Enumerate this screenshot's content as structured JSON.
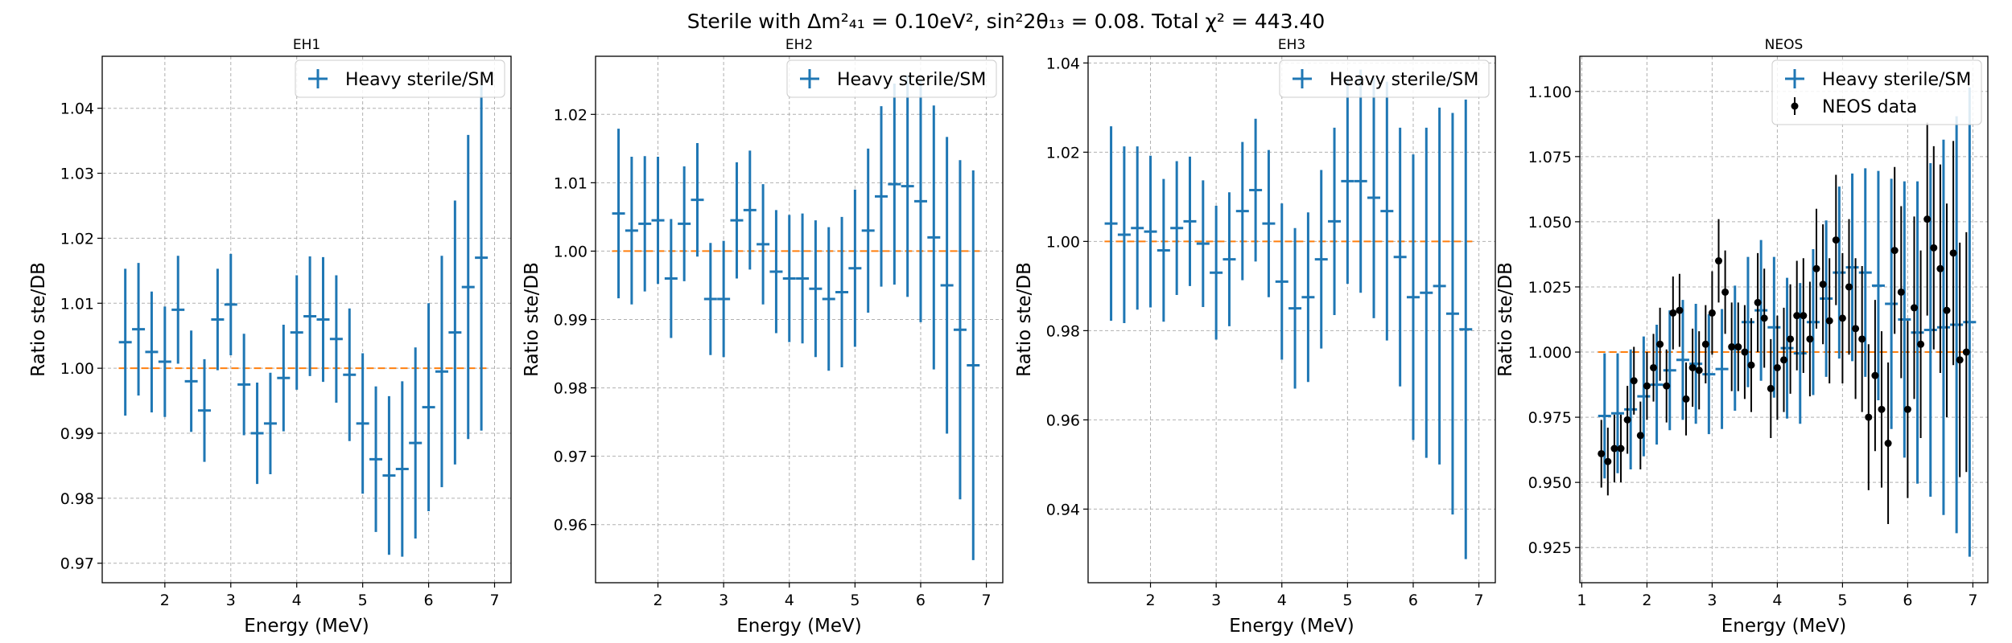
{
  "figure": {
    "suptitle": "Sterile with Δm²₄₁ = 0.10eV², sin²2θ₁₃ = 0.08. Total χ² = 443.40"
  },
  "colors": {
    "model": "#1f77b4",
    "data": "#000000",
    "reference": "#ff7f0e",
    "grid": "#b0b0b0"
  },
  "chart_data": [
    {
      "type": "errorbar",
      "title": "EH1",
      "xlabel": "Energy (MeV)",
      "ylabel": "Ratio ste/DB",
      "xlim": [
        1.05,
        7.25
      ],
      "ylim": [
        0.967,
        1.048
      ],
      "xticks": [
        2,
        3,
        4,
        5,
        6,
        7
      ],
      "yticks": [
        0.97,
        0.98,
        0.99,
        1.0,
        1.01,
        1.02,
        1.03,
        1.04
      ],
      "ytick_decimals": 2,
      "grid": true,
      "legend_position": "top-right",
      "reference_line": {
        "y": 1.0,
        "x": [
          1.3,
          6.9
        ]
      },
      "series": [
        {
          "name": "Heavy sterile/SM",
          "kind": "model",
          "x": [
            1.4,
            1.6,
            1.8,
            2.0,
            2.2,
            2.4,
            2.6,
            2.8,
            3.0,
            3.2,
            3.4,
            3.6,
            3.8,
            4.0,
            4.2,
            4.4,
            4.6,
            4.8,
            5.0,
            5.2,
            5.4,
            5.6,
            5.8,
            6.0,
            6.2,
            6.4,
            6.6,
            6.8
          ],
          "y": [
            1.004,
            1.006,
            1.0025,
            1.001,
            1.009,
            0.998,
            0.9935,
            1.0075,
            1.0098,
            0.9975,
            0.99,
            0.9915,
            0.9985,
            1.0055,
            1.008,
            1.0075,
            1.0045,
            0.999,
            0.9915,
            0.986,
            0.9835,
            0.9845,
            0.9885,
            0.994,
            0.9995,
            1.0055,
            1.0125,
            1.017
          ],
          "yerr": [
            0.0113,
            0.0102,
            0.0093,
            0.0085,
            0.0083,
            0.0078,
            0.0079,
            0.0078,
            0.0078,
            0.0078,
            0.0078,
            0.0078,
            0.0082,
            0.0088,
            0.0092,
            0.0096,
            0.0098,
            0.0102,
            0.0108,
            0.0112,
            0.0122,
            0.0135,
            0.0147,
            0.016,
            0.0178,
            0.0203,
            0.0234,
            0.0266
          ]
        }
      ]
    },
    {
      "type": "errorbar",
      "title": "EH2",
      "xlabel": "Energy (MeV)",
      "ylabel": "Ratio ste/DB",
      "xlim": [
        1.05,
        7.25
      ],
      "ylim": [
        0.9515,
        1.0285
      ],
      "xticks": [
        2,
        3,
        4,
        5,
        6,
        7
      ],
      "yticks": [
        0.96,
        0.97,
        0.98,
        0.99,
        1.0,
        1.01,
        1.02
      ],
      "ytick_decimals": 2,
      "grid": true,
      "legend_position": "top-right",
      "reference_line": {
        "y": 1.0,
        "x": [
          1.3,
          6.9
        ]
      },
      "series": [
        {
          "name": "Heavy sterile/SM",
          "kind": "model",
          "x": [
            1.4,
            1.6,
            1.8,
            2.0,
            2.2,
            2.4,
            2.6,
            2.8,
            3.0,
            3.2,
            3.4,
            3.6,
            3.8,
            4.0,
            4.2,
            4.4,
            4.6,
            4.8,
            5.0,
            5.2,
            5.4,
            5.6,
            5.8,
            6.0,
            6.2,
            6.4,
            6.6,
            6.8
          ],
          "y": [
            1.0055,
            1.003,
            1.004,
            1.0045,
            0.996,
            1.004,
            1.0075,
            0.993,
            0.993,
            1.0045,
            1.006,
            1.001,
            0.997,
            0.996,
            0.996,
            0.9945,
            0.993,
            0.994,
            0.9975,
            1.003,
            1.008,
            1.0098,
            1.0095,
            1.0073,
            1.002,
            0.995,
            0.9885,
            0.9833
          ],
          "yerr": [
            0.0124,
            0.0108,
            0.0099,
            0.0093,
            0.0087,
            0.0084,
            0.0083,
            0.0082,
            0.0085,
            0.0085,
            0.0087,
            0.0088,
            0.009,
            0.0093,
            0.0095,
            0.01,
            0.0105,
            0.011,
            0.0115,
            0.012,
            0.0132,
            0.0147,
            0.0162,
            0.0177,
            0.0193,
            0.0217,
            0.0248,
            0.0285
          ]
        }
      ]
    },
    {
      "type": "errorbar",
      "title": "EH3",
      "xlabel": "Energy (MeV)",
      "ylabel": "Ratio ste/DB",
      "xlim": [
        1.05,
        7.25
      ],
      "ylim": [
        0.9235,
        1.0415
      ],
      "xticks": [
        2,
        3,
        4,
        5,
        6,
        7
      ],
      "yticks": [
        0.94,
        0.96,
        0.98,
        1.0,
        1.02,
        1.04
      ],
      "ytick_decimals": 2,
      "grid": true,
      "legend_position": "top-right",
      "reference_line": {
        "y": 1.0,
        "x": [
          1.3,
          6.9
        ]
      },
      "series": [
        {
          "name": "Heavy sterile/SM",
          "kind": "model",
          "x": [
            1.4,
            1.6,
            1.8,
            2.0,
            2.2,
            2.4,
            2.6,
            2.8,
            3.0,
            3.2,
            3.4,
            3.6,
            3.8,
            4.0,
            4.2,
            4.4,
            4.6,
            4.8,
            5.0,
            5.2,
            5.4,
            5.6,
            5.8,
            6.0,
            6.2,
            6.4,
            6.6,
            6.8
          ],
          "y": [
            1.004,
            1.0015,
            1.003,
            1.0022,
            0.998,
            1.003,
            1.0045,
            0.9995,
            0.993,
            0.996,
            1.0068,
            1.0115,
            1.004,
            0.991,
            0.985,
            0.9875,
            0.996,
            1.0045,
            1.0135,
            1.0135,
            1.0098,
            1.0068,
            0.9965,
            0.9875,
            0.9885,
            0.99,
            0.9838,
            0.9803
          ],
          "yerr": [
            0.0218,
            0.0198,
            0.0183,
            0.017,
            0.016,
            0.015,
            0.0145,
            0.0142,
            0.015,
            0.015,
            0.0155,
            0.016,
            0.0165,
            0.0175,
            0.018,
            0.019,
            0.02,
            0.021,
            0.023,
            0.025,
            0.027,
            0.029,
            0.029,
            0.032,
            0.037,
            0.04,
            0.045,
            0.0515
          ]
        }
      ]
    },
    {
      "type": "errorbar",
      "title": "NEOS",
      "xlabel": "Energy (MeV)",
      "ylabel": "Ratio ste/DB",
      "xlim": [
        0.97,
        7.23
      ],
      "ylim": [
        0.9115,
        1.1135
      ],
      "xticks": [
        1,
        2,
        3,
        4,
        5,
        6,
        7
      ],
      "yticks": [
        0.925,
        0.95,
        0.975,
        1.0,
        1.025,
        1.05,
        1.075,
        1.1
      ],
      "ytick_decimals": 3,
      "grid": true,
      "legend_position": "top-right",
      "reference_line": {
        "y": 1.0,
        "x": [
          1.25,
          6.95
        ]
      },
      "series": [
        {
          "name": "Heavy sterile/SM",
          "kind": "model",
          "x": [
            1.35,
            1.55,
            1.75,
            1.95,
            2.15,
            2.35,
            2.55,
            2.75,
            2.95,
            3.15,
            3.35,
            3.55,
            3.75,
            3.95,
            4.15,
            4.35,
            4.55,
            4.75,
            4.95,
            5.15,
            5.35,
            5.55,
            5.75,
            5.95,
            6.15,
            6.35,
            6.55,
            6.75,
            6.95
          ],
          "y": [
            0.9755,
            0.9765,
            0.978,
            0.983,
            0.9875,
            0.993,
            0.997,
            0.9955,
            0.9915,
            0.9935,
            1.0015,
            1.0115,
            1.016,
            1.0095,
            1.0015,
            0.9995,
            1.0115,
            1.0205,
            1.0305,
            1.0325,
            1.0305,
            1.0255,
            1.0185,
            1.0125,
            1.0075,
            1.0085,
            1.0095,
            1.0105,
            1.0115
          ],
          "yerr": [
            0.024,
            0.023,
            0.023,
            0.023,
            0.023,
            0.023,
            0.023,
            0.023,
            0.023,
            0.023,
            0.024,
            0.025,
            0.027,
            0.027,
            0.027,
            0.027,
            0.028,
            0.03,
            0.033,
            0.036,
            0.04,
            0.044,
            0.048,
            0.053,
            0.058,
            0.064,
            0.072,
            0.08,
            0.09
          ]
        },
        {
          "name": "NEOS data",
          "kind": "data",
          "x": [
            1.3,
            1.4,
            1.5,
            1.6,
            1.7,
            1.8,
            1.9,
            2.0,
            2.1,
            2.2,
            2.3,
            2.4,
            2.5,
            2.6,
            2.7,
            2.8,
            2.9,
            3.0,
            3.1,
            3.2,
            3.3,
            3.4,
            3.5,
            3.6,
            3.7,
            3.8,
            3.9,
            4.0,
            4.1,
            4.2,
            4.3,
            4.4,
            4.5,
            4.6,
            4.7,
            4.8,
            4.9,
            5.0,
            5.1,
            5.2,
            5.3,
            5.4,
            5.5,
            5.6,
            5.7,
            5.8,
            5.9,
            6.0,
            6.1,
            6.2,
            6.3,
            6.4,
            6.5,
            6.6,
            6.7,
            6.8,
            6.9
          ],
          "y": [
            0.961,
            0.958,
            0.963,
            0.963,
            0.974,
            0.989,
            0.968,
            0.987,
            0.994,
            1.003,
            0.987,
            1.015,
            1.016,
            0.982,
            0.994,
            0.993,
            1.003,
            1.015,
            1.035,
            1.023,
            1.002,
            1.002,
            1.0,
            0.995,
            1.019,
            1.013,
            0.986,
            0.994,
            0.997,
            1.005,
            1.014,
            1.014,
            1.005,
            1.032,
            1.026,
            1.012,
            1.043,
            1.013,
            1.025,
            1.009,
            1.005,
            0.975,
            0.991,
            0.978,
            0.965,
            1.039,
            1.023,
            0.978,
            1.017,
            1.003,
            1.051,
            1.04,
            1.032,
            1.016,
            1.038,
            0.997,
            1.0
          ],
          "yerr": [
            0.013,
            0.013,
            0.013,
            0.013,
            0.013,
            0.013,
            0.013,
            0.013,
            0.013,
            0.014,
            0.014,
            0.014,
            0.014,
            0.014,
            0.015,
            0.015,
            0.015,
            0.016,
            0.016,
            0.016,
            0.017,
            0.017,
            0.018,
            0.018,
            0.019,
            0.019,
            0.019,
            0.02,
            0.02,
            0.021,
            0.021,
            0.022,
            0.022,
            0.023,
            0.023,
            0.024,
            0.025,
            0.025,
            0.026,
            0.027,
            0.028,
            0.028,
            0.029,
            0.03,
            0.031,
            0.032,
            0.033,
            0.034,
            0.035,
            0.036,
            0.037,
            0.039,
            0.04,
            0.041,
            0.043,
            0.045,
            0.046
          ]
        }
      ]
    }
  ]
}
